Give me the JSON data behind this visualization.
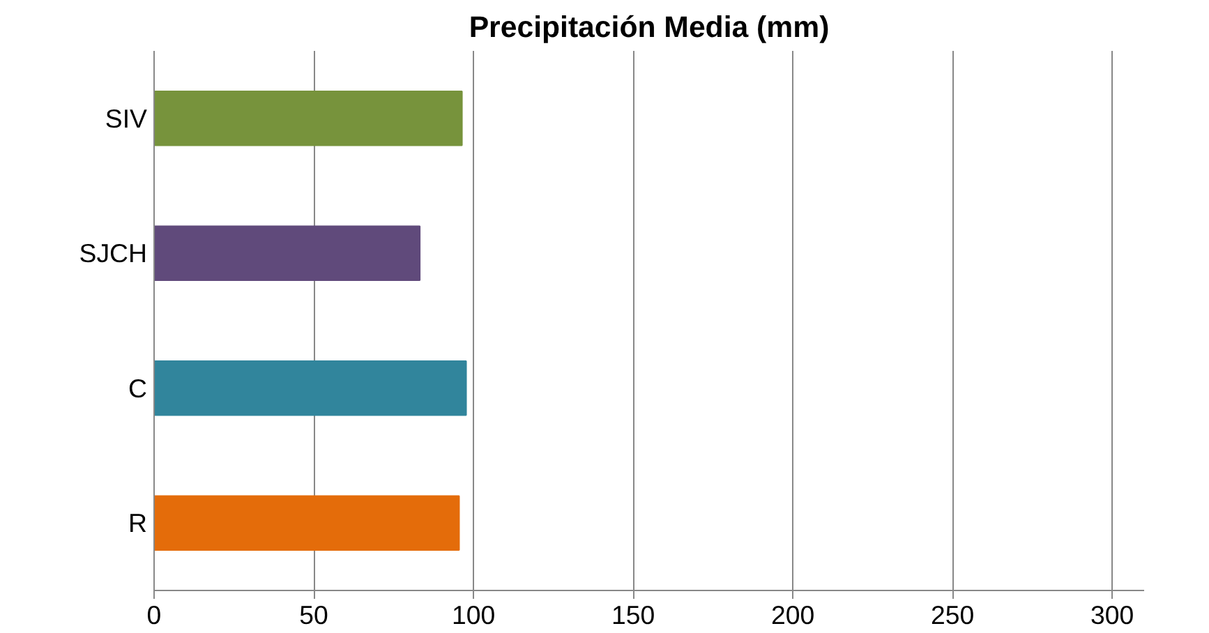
{
  "chart_data": {
    "type": "bar",
    "orientation": "horizontal",
    "title": "Precipitación Media (mm)",
    "categories": [
      "SIV",
      "SJCH",
      "C",
      "R"
    ],
    "values": [
      96.4,
      83.2,
      97.7,
      95.5
    ],
    "colors": [
      "#77933c",
      "#604a7b",
      "#31859c",
      "#e46c0a"
    ],
    "xlim": [
      0,
      310
    ],
    "xticks": [
      0,
      50,
      100,
      150,
      200,
      250,
      300
    ],
    "grid": "x"
  }
}
